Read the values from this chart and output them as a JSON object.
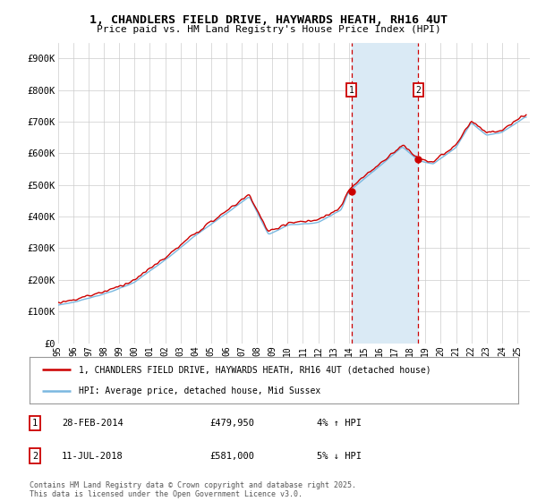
{
  "title": "1, CHANDLERS FIELD DRIVE, HAYWARDS HEATH, RH16 4UT",
  "subtitle": "Price paid vs. HM Land Registry's House Price Index (HPI)",
  "ylim": [
    0,
    950000
  ],
  "yticks": [
    0,
    100000,
    200000,
    300000,
    400000,
    500000,
    600000,
    700000,
    800000,
    900000
  ],
  "ytick_labels": [
    "£0",
    "£100K",
    "£200K",
    "£300K",
    "£400K",
    "£500K",
    "£600K",
    "£700K",
    "£800K",
    "£900K"
  ],
  "hpi_color": "#7ab8e0",
  "price_color": "#cc0000",
  "shade_color": "#daeaf5",
  "marker_color": "#cc0000",
  "background_color": "#ffffff",
  "grid_color": "#cccccc",
  "xlim_start": 1995,
  "xlim_end": 2025.8,
  "transaction1_x": 2014.16,
  "transaction1_y": 479950,
  "transaction1_label": "1",
  "transaction2_x": 2018.53,
  "transaction2_y": 581000,
  "transaction2_label": "2",
  "marker_y_pos": 800000,
  "legend_line1": "1, CHANDLERS FIELD DRIVE, HAYWARDS HEATH, RH16 4UT (detached house)",
  "legend_line2": "HPI: Average price, detached house, Mid Sussex",
  "footnote1_num": "1",
  "footnote1_date": "28-FEB-2014",
  "footnote1_price": "£479,950",
  "footnote1_hpi": "4% ↑ HPI",
  "footnote2_num": "2",
  "footnote2_date": "11-JUL-2018",
  "footnote2_price": "£581,000",
  "footnote2_hpi": "5% ↓ HPI",
  "copyright": "Contains HM Land Registry data © Crown copyright and database right 2025.\nThis data is licensed under the Open Government Licence v3.0."
}
